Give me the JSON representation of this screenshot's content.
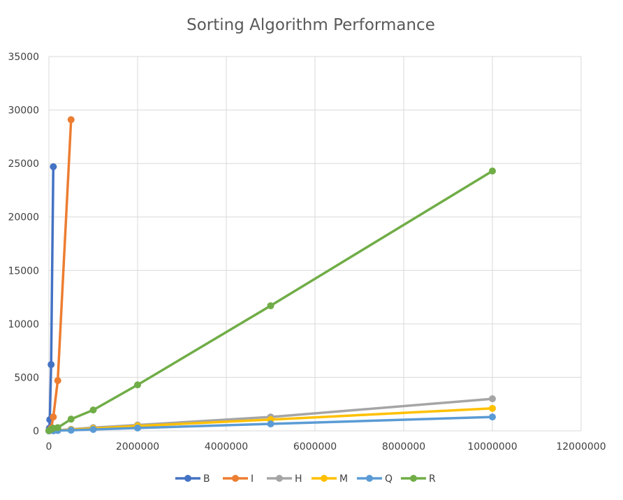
{
  "chart_data": {
    "type": "scatter",
    "title": "Sorting Algorithm Performance",
    "xlabel": "",
    "ylabel": "",
    "xlim": [
      0,
      12000000
    ],
    "ylim": [
      0,
      35000
    ],
    "x_ticks": [
      "0",
      "2000000",
      "4000000",
      "6000000",
      "8000000",
      "10000000",
      "12000000"
    ],
    "y_ticks": [
      "0",
      "5000",
      "10000",
      "15000",
      "20000",
      "25000",
      "30000",
      "35000"
    ],
    "grid": true,
    "legend_position": "bottom",
    "series": [
      {
        "name": "B",
        "color": "#4472C4",
        "points": [
          [
            1000,
            10
          ],
          [
            5000,
            60
          ],
          [
            10000,
            250
          ],
          [
            20000,
            1050
          ],
          [
            50000,
            6200
          ],
          [
            100000,
            24700
          ]
        ]
      },
      {
        "name": "I",
        "color": "#ED7D31",
        "points": [
          [
            1000,
            5
          ],
          [
            10000,
            40
          ],
          [
            50000,
            250
          ],
          [
            100000,
            1300
          ],
          [
            200000,
            4700
          ],
          [
            500000,
            29100
          ]
        ]
      },
      {
        "name": "H",
        "color": "#A5A5A5",
        "points": [
          [
            1000,
            1
          ],
          [
            100000,
            30
          ],
          [
            500000,
            150
          ],
          [
            1000000,
            300
          ],
          [
            2000000,
            550
          ],
          [
            5000000,
            1300
          ],
          [
            10000000,
            3000
          ]
        ]
      },
      {
        "name": "M",
        "color": "#FFC000",
        "points": [
          [
            1000,
            1
          ],
          [
            100000,
            25
          ],
          [
            500000,
            110
          ],
          [
            1000000,
            220
          ],
          [
            2000000,
            460
          ],
          [
            5000000,
            1050
          ],
          [
            10000000,
            2100
          ]
        ]
      },
      {
        "name": "Q",
        "color": "#5B9BD5",
        "points": [
          [
            1000,
            1
          ],
          [
            100000,
            10
          ],
          [
            200000,
            30
          ],
          [
            500000,
            60
          ],
          [
            1000000,
            130
          ],
          [
            2000000,
            270
          ],
          [
            5000000,
            650
          ],
          [
            10000000,
            1300
          ]
        ]
      },
      {
        "name": "R",
        "color": "#70AD47",
        "points": [
          [
            1000,
            30
          ],
          [
            50000,
            150
          ],
          [
            100000,
            250
          ],
          [
            200000,
            300
          ],
          [
            500000,
            1100
          ],
          [
            1000000,
            1950
          ],
          [
            2000000,
            4300
          ],
          [
            5000000,
            11700
          ],
          [
            10000000,
            24300
          ]
        ]
      }
    ]
  }
}
